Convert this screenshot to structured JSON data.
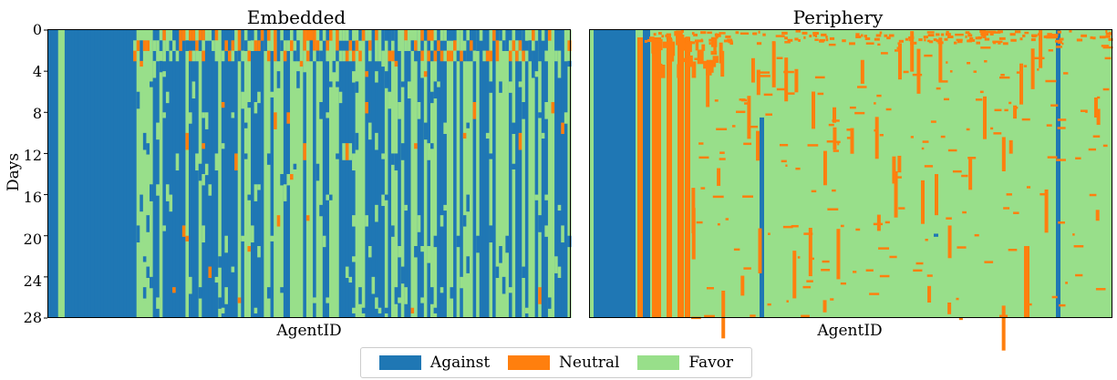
{
  "chart_data": [
    {
      "type": "heatmap",
      "title": "Embedded",
      "xlabel": "AgentID",
      "ylabel": "Days",
      "ylim": [
        0,
        28
      ],
      "yticks": [
        0,
        4,
        8,
        12,
        16,
        20,
        24,
        28
      ],
      "x_ticks_shown": false,
      "agents": 160,
      "categories": [
        "Against",
        "Neutral",
        "Favor"
      ],
      "blocks_in_agent_fraction_units": [
        {
          "from": 0.0,
          "to": 0.07,
          "value": "Favor"
        },
        {
          "from": 0.07,
          "to": 0.16,
          "value": "Against"
        },
        {
          "from": 0.16,
          "to": 0.22,
          "value": "Favor"
        },
        {
          "from": 0.22,
          "to": 0.34,
          "value": "Against"
        },
        {
          "from": 0.34,
          "to": 0.46,
          "value": "Mixed Favor/Against"
        },
        {
          "from": 0.46,
          "to": 1.0,
          "value": "Mixed Against/Favor"
        }
      ]
    },
    {
      "type": "heatmap",
      "title": "Periphery",
      "xlabel": "AgentID",
      "ylabel": "",
      "ylim": [
        0,
        28
      ],
      "x_ticks_shown": false,
      "agents": 160,
      "categories": [
        "Against",
        "Neutral",
        "Favor"
      ],
      "dominant_value": "Favor"
    }
  ],
  "ylabel_text": "Days",
  "y_tick_labels": [
    "0",
    "4",
    "8",
    "12",
    "16",
    "20",
    "24",
    "28"
  ],
  "panels": [
    {
      "title": "Embedded",
      "xlabel": "AgentID"
    },
    {
      "title": "Periphery",
      "xlabel": "AgentID"
    }
  ],
  "legend": [
    {
      "label": "Against",
      "color": "#1f77b4"
    },
    {
      "label": "Neutral",
      "color": "#ff7f0e"
    },
    {
      "label": "Favor",
      "color": "#98df8a"
    }
  ],
  "colors": {
    "against": "#1f77b4",
    "neutral": "#ff7f0e",
    "favor": "#98df8a"
  }
}
